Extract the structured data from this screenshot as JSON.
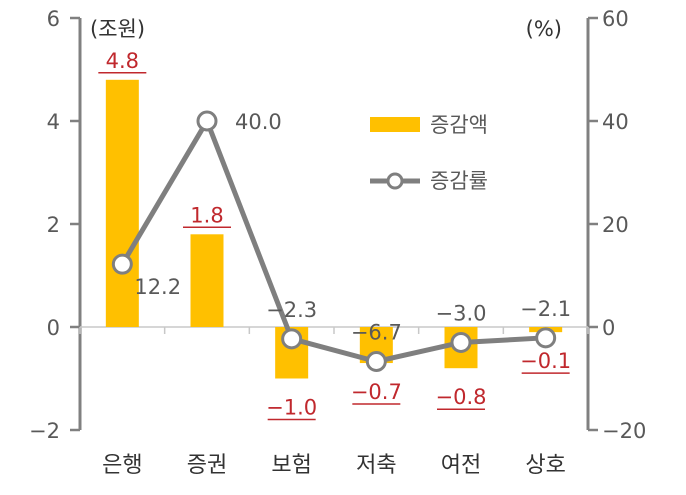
{
  "chart_data": {
    "type": "bar",
    "categories": [
      "은행",
      "증권",
      "보험",
      "저축",
      "여전",
      "상호"
    ],
    "left_unit": "(조원)",
    "right_unit": "(%)",
    "left_ylim": [
      -2,
      6
    ],
    "left_ticks": [
      "−2",
      "0",
      "2",
      "4",
      "6"
    ],
    "right_ylim": [
      -20,
      60
    ],
    "right_ticks": [
      "−20",
      "0",
      "20",
      "40",
      "60"
    ],
    "series": [
      {
        "name": "증감액",
        "type": "bar",
        "axis": "left",
        "values": [
          4.8,
          1.8,
          -1.0,
          -0.7,
          -0.8,
          -0.1
        ],
        "labels": [
          "4.8",
          "1.8",
          "−1.0",
          "−0.7",
          "−0.8",
          "−0.1"
        ],
        "color": "#ffc000"
      },
      {
        "name": "증감률",
        "type": "line",
        "axis": "right",
        "values": [
          12.2,
          40.0,
          -2.3,
          -6.7,
          -3.0,
          -2.1
        ],
        "labels": [
          "12.2",
          "40.0",
          "−2.3",
          "−6.7",
          "−3.0",
          "−2.1"
        ],
        "color": "#7f7f7f"
      }
    ],
    "legend": "top-right",
    "label_color": "#c0282d",
    "axis_color": "#808080"
  }
}
